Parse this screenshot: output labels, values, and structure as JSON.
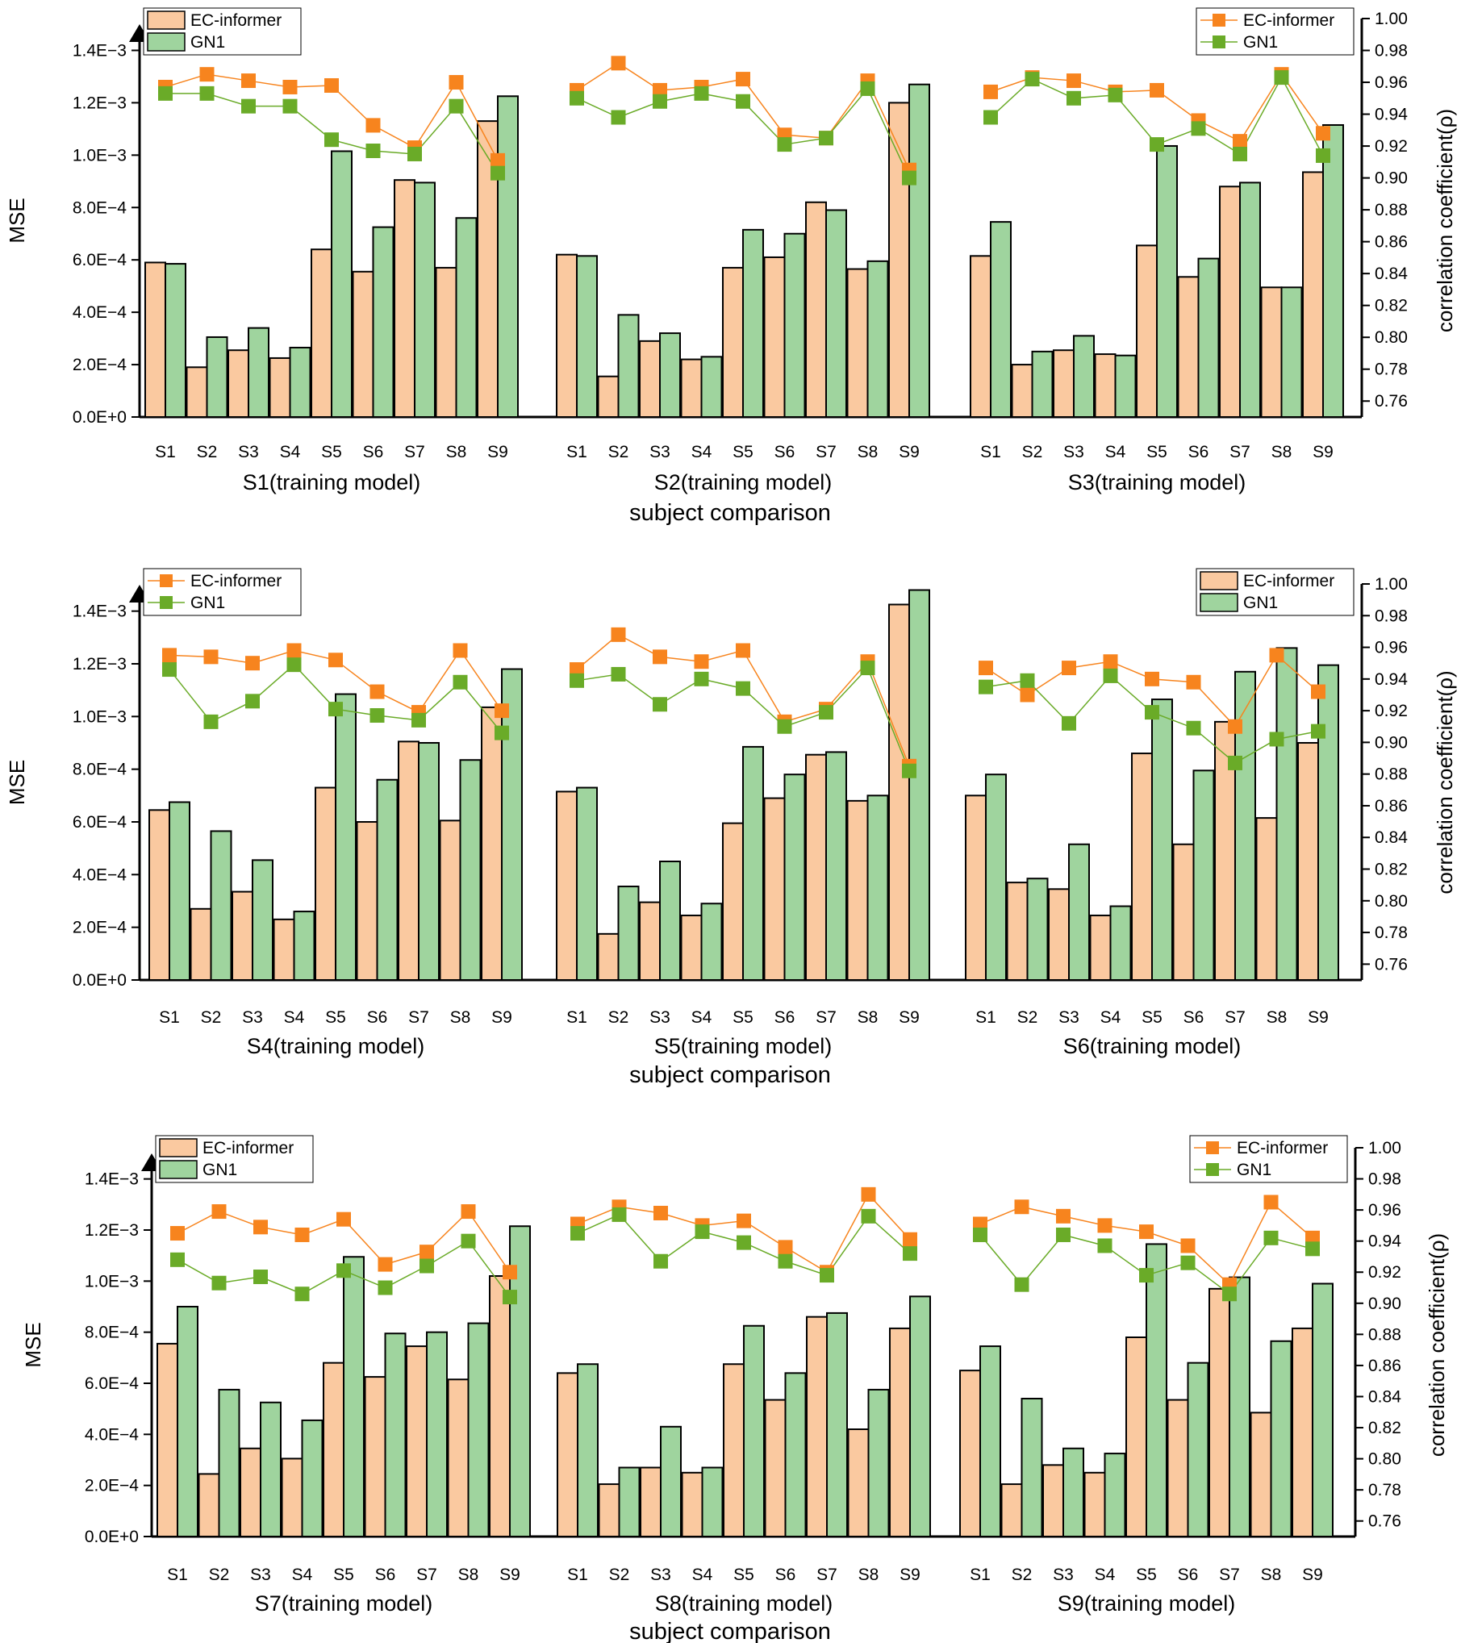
{
  "figure": {
    "type": "composite",
    "description_note": "Three panels of grouped bar charts (MSE, left axis) with overlaid correlation-coefficient line series (right axis)"
  },
  "colors": {
    "ec_bar": "#FAC9A0",
    "gn1_bar": "#9FD49E",
    "ec_line": "#F7841E",
    "gn1_line": "#6AAB28",
    "axis": "#000000"
  },
  "chart_data": [
    {
      "type": "bar",
      "panel": 1,
      "ylabel": "MSE",
      "ylabel_right": "correlation coefficient(ρ)",
      "xlabel": "subject comparison",
      "ylim": [
        0,
        0.0015
      ],
      "ytick_labels": [
        "0.0E+0",
        "2.0E−4",
        "4.0E−4",
        "6.0E−4",
        "8.0E−4",
        "1.0E−3",
        "1.2E−3",
        "1.4E−3"
      ],
      "y2lim": [
        0.75,
        1.0
      ],
      "y2tick_labels": [
        "0.76",
        "0.78",
        "0.80",
        "0.82",
        "0.84",
        "0.86",
        "0.88",
        "0.90",
        "0.92",
        "0.94",
        "0.96",
        "0.98",
        "1.00"
      ],
      "legends": [
        {
          "style": "bar",
          "position": "top-left",
          "entries": [
            "EC-informer",
            "GN1"
          ]
        },
        {
          "style": "line",
          "position": "top-right",
          "entries": [
            "EC-informer",
            "GN1"
          ]
        }
      ],
      "groups": [
        {
          "title": "S1(training model)",
          "categories": [
            "S1",
            "S2",
            "S3",
            "S4",
            "S5",
            "S6",
            "S7",
            "S8",
            "S9"
          ],
          "series": [
            {
              "name": "EC-informer",
              "kind": "bar",
              "values": [
                0.00059,
                0.00019,
                0.000255,
                0.000225,
                0.00064,
                0.000555,
                0.000905,
                0.00057,
                0.00113
              ]
            },
            {
              "name": "GN1",
              "kind": "bar",
              "values": [
                0.000585,
                0.000305,
                0.00034,
                0.000265,
                0.001015,
                0.000725,
                0.000895,
                0.00076,
                0.001225
              ]
            },
            {
              "name": "EC-informer",
              "kind": "line",
              "values": [
                0.957,
                0.965,
                0.961,
                0.957,
                0.958,
                0.933,
                0.919,
                0.96,
                0.911
              ]
            },
            {
              "name": "GN1",
              "kind": "line",
              "values": [
                0.953,
                0.953,
                0.945,
                0.945,
                0.924,
                0.917,
                0.915,
                0.945,
                0.903
              ]
            }
          ]
        },
        {
          "title": "S2(training model)",
          "categories": [
            "S1",
            "S2",
            "S3",
            "S4",
            "S5",
            "S6",
            "S7",
            "S8",
            "S9"
          ],
          "series": [
            {
              "name": "EC-informer",
              "kind": "bar",
              "values": [
                0.00062,
                0.000155,
                0.00029,
                0.00022,
                0.00057,
                0.00061,
                0.00082,
                0.000565,
                0.0012
              ]
            },
            {
              "name": "GN1",
              "kind": "bar",
              "values": [
                0.000615,
                0.00039,
                0.00032,
                0.00023,
                0.000715,
                0.0007,
                0.00079,
                0.000595,
                0.00127
              ]
            },
            {
              "name": "EC-informer",
              "kind": "line",
              "values": [
                0.955,
                0.972,
                0.955,
                0.957,
                0.962,
                0.927,
                0.925,
                0.961,
                0.905
              ]
            },
            {
              "name": "GN1",
              "kind": "line",
              "values": [
                0.95,
                0.938,
                0.948,
                0.953,
                0.948,
                0.921,
                0.925,
                0.956,
                0.9
              ]
            }
          ]
        },
        {
          "title": "S3(training model)",
          "categories": [
            "S1",
            "S2",
            "S3",
            "S4",
            "S5",
            "S6",
            "S7",
            "S8",
            "S9"
          ],
          "series": [
            {
              "name": "EC-informer",
              "kind": "bar",
              "values": [
                0.000615,
                0.0002,
                0.000255,
                0.00024,
                0.000655,
                0.000535,
                0.00088,
                0.000495,
                0.000935
              ]
            },
            {
              "name": "GN1",
              "kind": "bar",
              "values": [
                0.000745,
                0.00025,
                0.00031,
                0.000235,
                0.001035,
                0.000605,
                0.000895,
                0.000495,
                0.001115
              ]
            },
            {
              "name": "EC-informer",
              "kind": "line",
              "values": [
                0.954,
                0.963,
                0.961,
                0.954,
                0.955,
                0.936,
                0.923,
                0.965,
                0.928
              ]
            },
            {
              "name": "GN1",
              "kind": "line",
              "values": [
                0.938,
                0.962,
                0.95,
                0.952,
                0.921,
                0.931,
                0.915,
                0.963,
                0.914
              ]
            }
          ]
        }
      ]
    },
    {
      "type": "bar",
      "panel": 2,
      "ylabel": "MSE",
      "ylabel_right": "correlation coefficient(ρ)",
      "xlabel": "subject comparison",
      "ylim": [
        0,
        0.0015
      ],
      "ytick_labels": [
        "0.0E+0",
        "2.0E−4",
        "4.0E−4",
        "6.0E−4",
        "8.0E−4",
        "1.0E−3",
        "1.2E−3",
        "1.4E−3"
      ],
      "y2lim": [
        0.75,
        1.0
      ],
      "y2tick_labels": [
        "0.76",
        "0.78",
        "0.80",
        "0.82",
        "0.84",
        "0.86",
        "0.88",
        "0.90",
        "0.92",
        "0.94",
        "0.96",
        "0.98",
        "1.00"
      ],
      "legends": [
        {
          "style": "line",
          "position": "top-left",
          "entries": [
            "EC-informer",
            "GN1"
          ]
        },
        {
          "style": "bar",
          "position": "top-right",
          "entries": [
            "EC-informer",
            "GN1"
          ]
        }
      ],
      "groups": [
        {
          "title": "S4(training model)",
          "categories": [
            "S1",
            "S2",
            "S3",
            "S4",
            "S5",
            "S6",
            "S7",
            "S8",
            "S9"
          ],
          "series": [
            {
              "name": "EC-informer",
              "kind": "bar",
              "values": [
                0.000645,
                0.00027,
                0.000335,
                0.00023,
                0.00073,
                0.0006,
                0.000905,
                0.000605,
                0.001035
              ]
            },
            {
              "name": "GN1",
              "kind": "bar",
              "values": [
                0.000675,
                0.000565,
                0.000455,
                0.00026,
                0.001085,
                0.00076,
                0.0009,
                0.000835,
                0.00118
              ]
            },
            {
              "name": "EC-informer",
              "kind": "line",
              "values": [
                0.955,
                0.954,
                0.95,
                0.958,
                0.952,
                0.932,
                0.919,
                0.958,
                0.92
              ]
            },
            {
              "name": "GN1",
              "kind": "line",
              "values": [
                0.946,
                0.913,
                0.926,
                0.949,
                0.921,
                0.917,
                0.914,
                0.938,
                0.906
              ]
            }
          ]
        },
        {
          "title": "S5(training model)",
          "categories": [
            "S1",
            "S2",
            "S3",
            "S4",
            "S5",
            "S6",
            "S7",
            "S8",
            "S9"
          ],
          "series": [
            {
              "name": "EC-informer",
              "kind": "bar",
              "values": [
                0.000715,
                0.000175,
                0.000295,
                0.000245,
                0.000595,
                0.00069,
                0.000855,
                0.00068,
                0.001425
              ]
            },
            {
              "name": "GN1",
              "kind": "bar",
              "values": [
                0.00073,
                0.000355,
                0.00045,
                0.00029,
                0.000885,
                0.00078,
                0.000865,
                0.0007,
                0.00148
              ]
            },
            {
              "name": "EC-informer",
              "kind": "line",
              "values": [
                0.946,
                0.968,
                0.954,
                0.951,
                0.958,
                0.913,
                0.921,
                0.951,
                0.885
              ]
            },
            {
              "name": "GN1",
              "kind": "line",
              "values": [
                0.939,
                0.943,
                0.924,
                0.94,
                0.934,
                0.91,
                0.919,
                0.947,
                0.882
              ]
            }
          ]
        },
        {
          "title": "S6(training model)",
          "categories": [
            "S1",
            "S2",
            "S3",
            "S4",
            "S5",
            "S6",
            "S7",
            "S8",
            "S9"
          ],
          "series": [
            {
              "name": "EC-informer",
              "kind": "bar",
              "values": [
                0.0007,
                0.00037,
                0.000345,
                0.000245,
                0.00086,
                0.000515,
                0.00098,
                0.000615,
                0.0009
              ]
            },
            {
              "name": "GN1",
              "kind": "bar",
              "values": [
                0.00078,
                0.000385,
                0.000515,
                0.00028,
                0.001065,
                0.000795,
                0.00117,
                0.00126,
                0.001195
              ]
            },
            {
              "name": "EC-informer",
              "kind": "line",
              "values": [
                0.947,
                0.93,
                0.947,
                0.951,
                0.94,
                0.938,
                0.91,
                0.955,
                0.932
              ]
            },
            {
              "name": "GN1",
              "kind": "line",
              "values": [
                0.935,
                0.939,
                0.912,
                0.942,
                0.919,
                0.909,
                0.887,
                0.902,
                0.907
              ]
            }
          ]
        }
      ]
    },
    {
      "type": "bar",
      "panel": 3,
      "ylabel": "MSE",
      "ylabel_right": "correlation coefficient(ρ)",
      "xlabel": "subject comparison",
      "ylim": [
        0,
        0.0015
      ],
      "ytick_labels": [
        "0.0E+0",
        "2.0E−4",
        "4.0E−4",
        "6.0E−4",
        "8.0E−4",
        "1.0E−3",
        "1.2E−3",
        "1.4E−3"
      ],
      "y2lim": [
        0.75,
        1.0
      ],
      "y2tick_labels": [
        "0.76",
        "0.78",
        "0.80",
        "0.82",
        "0.84",
        "0.86",
        "0.88",
        "0.90",
        "0.92",
        "0.94",
        "0.96",
        "0.98",
        "1.00"
      ],
      "legends": [
        {
          "style": "bar",
          "position": "top-left",
          "entries": [
            "EC-informer",
            "GN1"
          ]
        },
        {
          "style": "line",
          "position": "top-right",
          "entries": [
            "EC-informer",
            "GN1"
          ]
        }
      ],
      "groups": [
        {
          "title": "S7(training model)",
          "categories": [
            "S1",
            "S2",
            "S3",
            "S4",
            "S5",
            "S6",
            "S7",
            "S8",
            "S9"
          ],
          "series": [
            {
              "name": "EC-informer",
              "kind": "bar",
              "values": [
                0.000755,
                0.000245,
                0.000345,
                0.000305,
                0.00068,
                0.000625,
                0.000745,
                0.000615,
                0.00102
              ]
            },
            {
              "name": "GN1",
              "kind": "bar",
              "values": [
                0.0009,
                0.000575,
                0.000525,
                0.000455,
                0.001095,
                0.000795,
                0.0008,
                0.000835,
                0.001215
              ]
            },
            {
              "name": "EC-informer",
              "kind": "line",
              "values": [
                0.945,
                0.959,
                0.949,
                0.944,
                0.954,
                0.925,
                0.933,
                0.959,
                0.92
              ]
            },
            {
              "name": "GN1",
              "kind": "line",
              "values": [
                0.928,
                0.913,
                0.917,
                0.906,
                0.921,
                0.91,
                0.924,
                0.94,
                0.904
              ]
            }
          ]
        },
        {
          "title": "S8(training model)",
          "categories": [
            "S1",
            "S2",
            "S3",
            "S4",
            "S5",
            "S6",
            "S7",
            "S8",
            "S9"
          ],
          "series": [
            {
              "name": "EC-informer",
              "kind": "bar",
              "values": [
                0.00064,
                0.000205,
                0.00027,
                0.00025,
                0.000675,
                0.000535,
                0.00086,
                0.00042,
                0.000815
              ]
            },
            {
              "name": "GN1",
              "kind": "bar",
              "values": [
                0.000675,
                0.00027,
                0.00043,
                0.00027,
                0.000825,
                0.00064,
                0.000875,
                0.000575,
                0.00094
              ]
            },
            {
              "name": "EC-informer",
              "kind": "line",
              "values": [
                0.951,
                0.962,
                0.958,
                0.95,
                0.953,
                0.936,
                0.92,
                0.97,
                0.941
              ]
            },
            {
              "name": "GN1",
              "kind": "line",
              "values": [
                0.945,
                0.957,
                0.927,
                0.946,
                0.939,
                0.927,
                0.918,
                0.956,
                0.932
              ]
            }
          ]
        },
        {
          "title": "S9(training model)",
          "categories": [
            "S1",
            "S2",
            "S3",
            "S4",
            "S5",
            "S6",
            "S7",
            "S8",
            "S9"
          ],
          "series": [
            {
              "name": "EC-informer",
              "kind": "bar",
              "values": [
                0.00065,
                0.000205,
                0.00028,
                0.00025,
                0.00078,
                0.000535,
                0.00097,
                0.000485,
                0.000815
              ]
            },
            {
              "name": "GN1",
              "kind": "bar",
              "values": [
                0.000745,
                0.00054,
                0.000345,
                0.000325,
                0.001145,
                0.00068,
                0.001015,
                0.000765,
                0.00099
              ]
            },
            {
              "name": "EC-informer",
              "kind": "line",
              "values": [
                0.951,
                0.962,
                0.956,
                0.95,
                0.946,
                0.937,
                0.912,
                0.965,
                0.942
              ]
            },
            {
              "name": "GN1",
              "kind": "line",
              "values": [
                0.944,
                0.912,
                0.944,
                0.937,
                0.918,
                0.926,
                0.906,
                0.942,
                0.935
              ]
            }
          ]
        }
      ]
    }
  ]
}
